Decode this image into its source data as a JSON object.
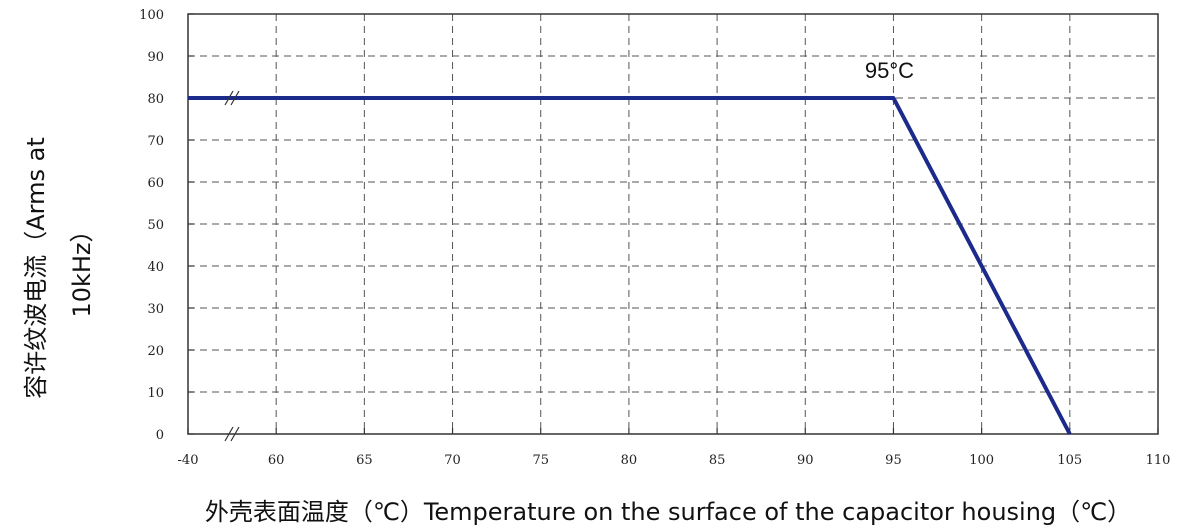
{
  "chart_data": {
    "type": "line",
    "title": "",
    "xlabel": "外壳表面温度（℃）Temperature on the surface of the capacitor housing（℃）",
    "ylabel_line1": "容许纹波电流（Arms at",
    "ylabel_line2": "10kHz）",
    "x_ticks": [
      "-40",
      "60",
      "65",
      "70",
      "75",
      "80",
      "85",
      "90",
      "95",
      "100",
      "105",
      "110"
    ],
    "y_ticks": [
      "0",
      "10",
      "20",
      "30",
      "40",
      "50",
      "60",
      "70",
      "80",
      "90",
      "100"
    ],
    "x_tick_values": [
      55,
      60,
      65,
      70,
      75,
      80,
      85,
      90,
      95,
      100,
      105,
      110
    ],
    "xlim": [
      55,
      110
    ],
    "ylim": [
      0,
      100
    ],
    "axis_break": "x between -40 and 60",
    "grid": true,
    "series": [
      {
        "x": [
          55,
          95,
          105
        ],
        "y": [
          80,
          80,
          0
        ]
      }
    ],
    "annotations": [
      {
        "text": "95°C",
        "x": 95,
        "y": 80
      }
    ],
    "colors": {
      "series": "#1c2a8c",
      "grid": "#555555"
    }
  }
}
